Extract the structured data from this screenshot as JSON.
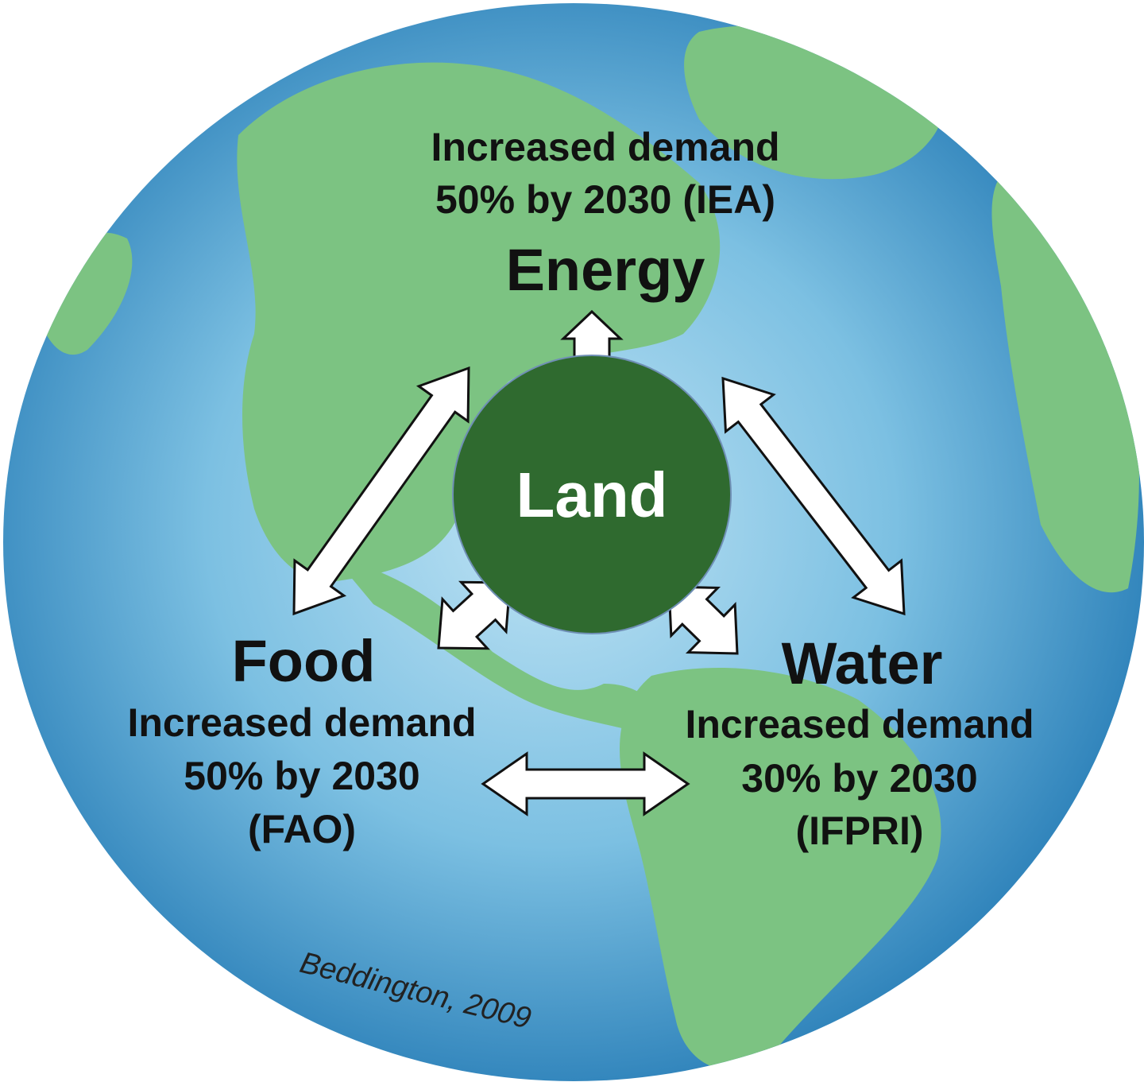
{
  "nodes": [
    {
      "label": "Energy",
      "demand": [
        "Increased demand",
        "50% by 2030 (IEA)"
      ]
    },
    {
      "label": "Food",
      "demand": [
        "Increased demand",
        "50% by 2030",
        "(FAO)"
      ]
    },
    {
      "label": "Water",
      "demand": [
        "Increased demand",
        "30% by 2030",
        "(IFPRI)"
      ]
    },
    {
      "label": "Land"
    }
  ],
  "credit": "Beddington, 2009"
}
